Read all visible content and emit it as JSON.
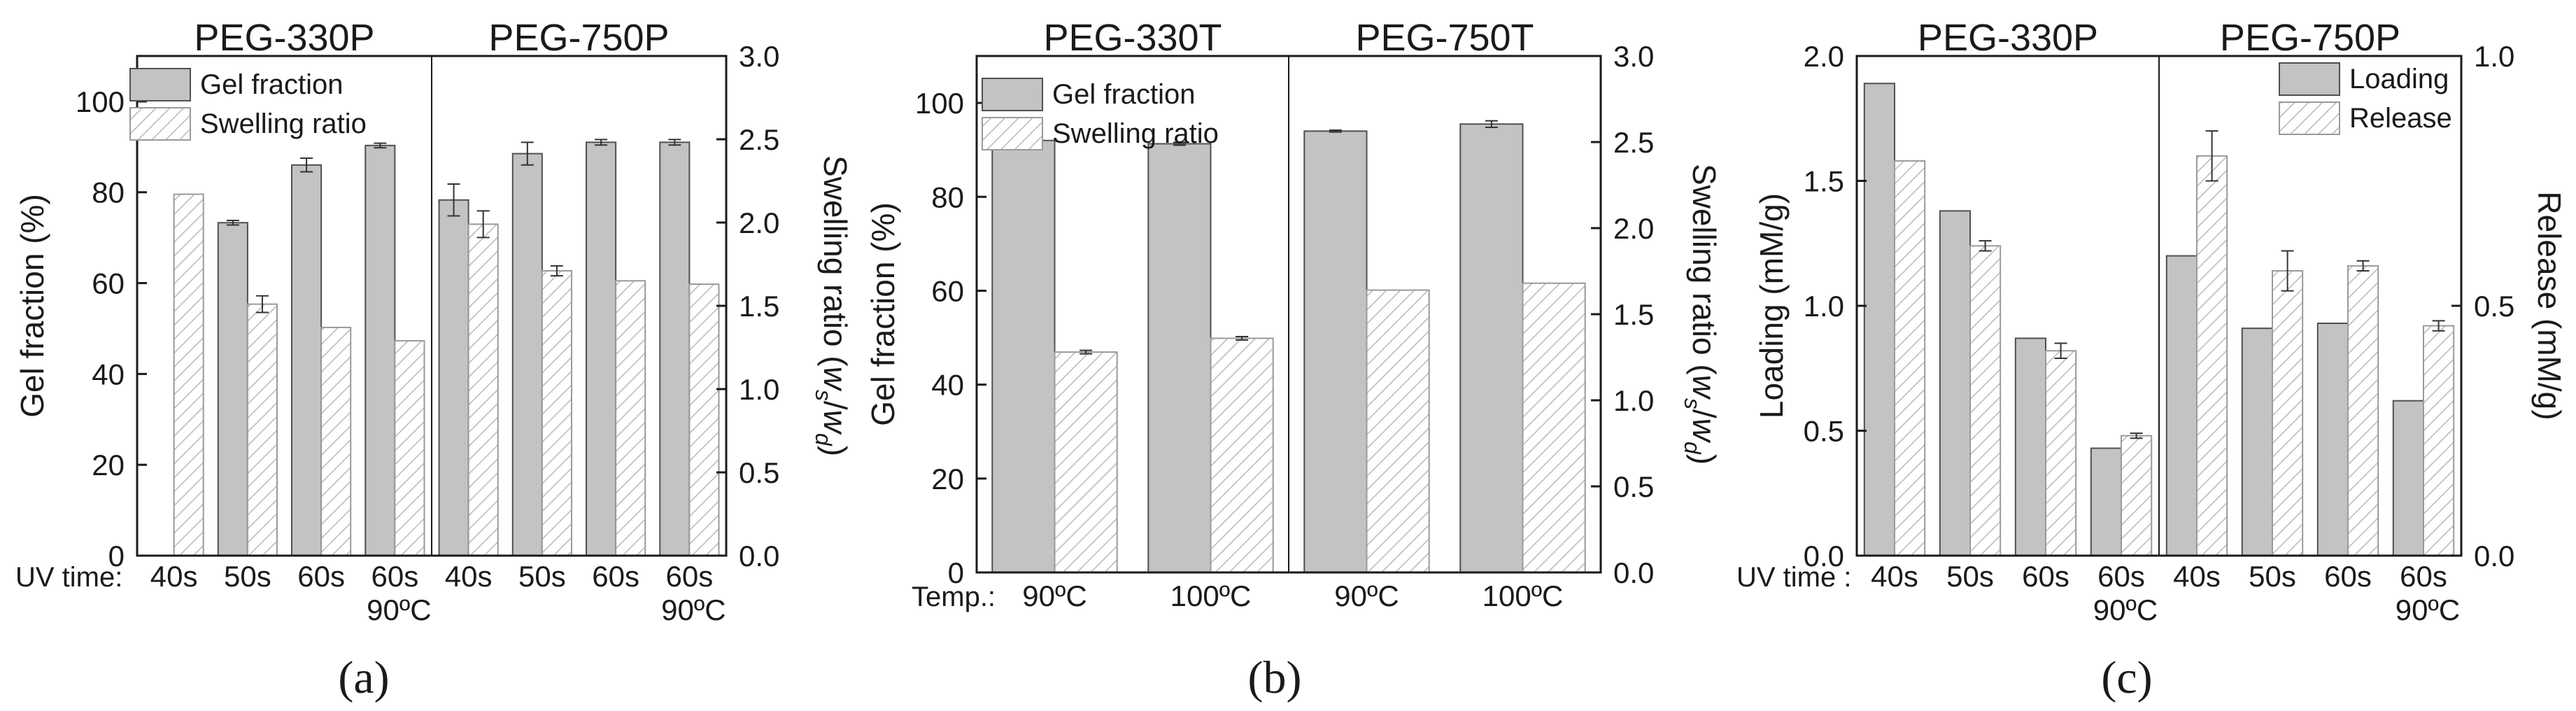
{
  "chart_data": [
    {
      "panel": "(a)",
      "type": "bar",
      "group_titles": [
        "PEG-330P",
        "PEG-750P"
      ],
      "category_prefix": "UV time:",
      "categories": [
        {
          "line1": "40s",
          "line2": ""
        },
        {
          "line1": "50s",
          "line2": ""
        },
        {
          "line1": "60s",
          "line2": ""
        },
        {
          "line1": "60s",
          "line2": "90ºC"
        },
        {
          "line1": "40s",
          "line2": ""
        },
        {
          "line1": "50s",
          "line2": ""
        },
        {
          "line1": "60s",
          "line2": ""
        },
        {
          "line1": "60s",
          "line2": "90ºC"
        }
      ],
      "ylabel": "Gel fraction (%)",
      "ylim": [
        0,
        110
      ],
      "yticks": [
        0,
        20,
        40,
        60,
        80,
        100
      ],
      "y2label_main": "Swelling ratio (",
      "y2label_ws": "w",
      "y2label_ws_sub": "s",
      "y2label_slash": "/",
      "y2label_wd": "w",
      "y2label_wd_sub": "d",
      "y2label_end": ")",
      "y2lim": [
        0,
        3.0
      ],
      "y2ticks": [
        "0.0",
        "0.5",
        "1.0",
        "1.5",
        "2.0",
        "2.5",
        "3.0"
      ],
      "legend": [
        "Gel fraction",
        "Swelling ratio"
      ],
      "series": [
        {
          "name": "Gel fraction",
          "axis": "left",
          "style": "solid",
          "values": [
            null,
            73.3,
            86.0,
            90.3,
            78.3,
            88.5,
            91.0,
            91.0
          ],
          "errors": [
            0,
            0.5,
            1.5,
            0.5,
            3.5,
            2.5,
            0.6,
            0.6
          ]
        },
        {
          "name": "Swelling ratio",
          "axis": "right",
          "style": "hatch",
          "values": [
            2.17,
            1.51,
            1.37,
            1.29,
            1.99,
            1.71,
            1.65,
            1.63
          ],
          "errors": [
            0,
            0.05,
            0,
            0,
            0.08,
            0.03,
            0,
            0
          ]
        }
      ]
    },
    {
      "panel": "(b)",
      "type": "bar",
      "group_titles": [
        "PEG-330T",
        "PEG-750T"
      ],
      "category_prefix": "Temp.:",
      "categories": [
        {
          "line1": "90ºC",
          "line2": ""
        },
        {
          "line1": "100ºC",
          "line2": ""
        },
        {
          "line1": "90ºC",
          "line2": ""
        },
        {
          "line1": "100ºC",
          "line2": ""
        }
      ],
      "ylabel": "Gel fraction (%)",
      "ylim": [
        0,
        110
      ],
      "yticks": [
        0,
        20,
        40,
        60,
        80,
        100
      ],
      "y2label_main": "Swelling ratio (",
      "y2label_ws": "w",
      "y2label_ws_sub": "s",
      "y2label_slash": "/",
      "y2label_wd": "w",
      "y2label_wd_sub": "d",
      "y2label_end": ")",
      "y2lim": [
        0,
        3.0
      ],
      "y2ticks": [
        "0.0",
        "0.5",
        "1.0",
        "1.5",
        "2.0",
        "2.5",
        "3.0"
      ],
      "legend": [
        "Gel fraction",
        "Swelling ratio"
      ],
      "series": [
        {
          "name": "Gel fraction",
          "axis": "left",
          "style": "solid",
          "values": [
            92.0,
            91.3,
            94.0,
            95.5
          ],
          "errors": [
            0.2,
            0.3,
            0.2,
            0.7
          ]
        },
        {
          "name": "Swelling ratio",
          "axis": "right",
          "style": "hatch",
          "values": [
            1.28,
            1.36,
            1.64,
            1.68
          ],
          "errors": [
            0.01,
            0.01,
            0,
            0
          ]
        }
      ]
    },
    {
      "panel": "(c)",
      "type": "bar",
      "group_titles": [
        "PEG-330P",
        "PEG-750P"
      ],
      "category_prefix": "UV time :",
      "categories": [
        {
          "line1": "40s",
          "line2": ""
        },
        {
          "line1": "50s",
          "line2": ""
        },
        {
          "line1": "60s",
          "line2": ""
        },
        {
          "line1": "60s",
          "line2": "90ºC"
        },
        {
          "line1": "40s",
          "line2": ""
        },
        {
          "line1": "50s",
          "line2": ""
        },
        {
          "line1": "60s",
          "line2": ""
        },
        {
          "line1": "60s",
          "line2": "90ºC"
        }
      ],
      "ylabel": "Loading (mM/g)",
      "ylim": [
        0,
        2.0
      ],
      "yticks": [
        "0.0",
        "0.5",
        "1.0",
        "1.5",
        "2.0"
      ],
      "y2label": "Release (mM/g)",
      "y2lim": [
        0,
        1.0
      ],
      "y2ticks": [
        "0.0",
        "0.5",
        "1.0"
      ],
      "legend": [
        "Loading",
        "Release"
      ],
      "series": [
        {
          "name": "Loading",
          "axis": "left",
          "style": "solid",
          "values": [
            1.89,
            1.38,
            0.87,
            0.43,
            1.2,
            0.91,
            0.93,
            0.62
          ],
          "errors": [
            0,
            0,
            0,
            0,
            0,
            0,
            0,
            0
          ]
        },
        {
          "name": "Release",
          "axis": "right",
          "style": "hatch",
          "values": [
            0.79,
            0.62,
            0.41,
            0.24,
            0.8,
            0.57,
            0.58,
            0.46
          ],
          "errors": [
            0,
            0.01,
            0.015,
            0.005,
            0.05,
            0.04,
            0.01,
            0.01
          ]
        }
      ]
    }
  ],
  "captions": [
    "(a)",
    "(b)",
    "(c)"
  ],
  "colors": {
    "bar_fill": "#c3c3c3",
    "bar_edge": "#505050",
    "hatch": "#b8b8b8",
    "axis": "#1a1a1a",
    "text": "#1a1a1a"
  }
}
